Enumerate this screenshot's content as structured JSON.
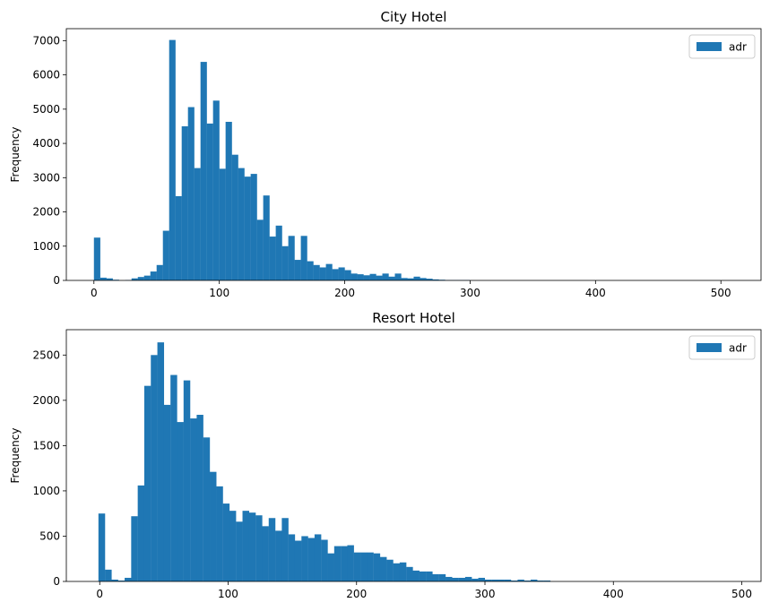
{
  "chart_data": [
    {
      "type": "bar",
      "subtype": "histogram",
      "title": "City Hotel",
      "xlabel": "",
      "ylabel": "Frequency",
      "xlim": [
        -22,
        532
      ],
      "ylim": [
        0,
        7350
      ],
      "xticks": [
        0,
        100,
        200,
        300,
        400,
        500
      ],
      "yticks": [
        0,
        1000,
        2000,
        3000,
        4000,
        5000,
        6000,
        7000
      ],
      "legend": {
        "position": "top-right",
        "entries": [
          "adr"
        ]
      },
      "color": "#1f77b4",
      "grid": false,
      "bin_edges_start": 0,
      "bin_width": 5,
      "series": [
        {
          "name": "adr",
          "values": [
            1250,
            80,
            60,
            20,
            0,
            10,
            60,
            100,
            140,
            260,
            450,
            1450,
            7020,
            2460,
            4500,
            5060,
            3280,
            6380,
            4580,
            5250,
            3260,
            4630,
            3670,
            3280,
            3030,
            3110,
            1770,
            2480,
            1280,
            1600,
            1000,
            1300,
            600,
            1300,
            560,
            450,
            380,
            480,
            330,
            380,
            300,
            200,
            180,
            150,
            190,
            140,
            200,
            110,
            200,
            70,
            60,
            110,
            70,
            50,
            30,
            20,
            10,
            10,
            10,
            10,
            0,
            0,
            0,
            0,
            0,
            0,
            0,
            0,
            0,
            0,
            0,
            0,
            0,
            0,
            0,
            0,
            0,
            0,
            0,
            0,
            0,
            0,
            0,
            0,
            0,
            0,
            0,
            0,
            0,
            0,
            0,
            0,
            0,
            0,
            0,
            0,
            0,
            0,
            0,
            0,
            0,
            0
          ]
        }
      ]
    },
    {
      "type": "bar",
      "subtype": "histogram",
      "title": "Resort Hotel",
      "xlabel": "",
      "ylabel": "Frequency",
      "xlim": [
        -26,
        515
      ],
      "ylim": [
        0,
        2780
      ],
      "xticks": [
        0,
        100,
        200,
        300,
        400,
        500
      ],
      "yticks": [
        0,
        500,
        1000,
        1500,
        2000,
        2500
      ],
      "legend": {
        "position": "top-right",
        "entries": [
          "adr"
        ]
      },
      "color": "#1f77b4",
      "grid": false,
      "bin_edges_start": -1,
      "bin_width": 5.1,
      "series": [
        {
          "name": "adr",
          "values": [
            750,
            130,
            20,
            10,
            40,
            720,
            1060,
            2160,
            2500,
            2640,
            1950,
            2280,
            1760,
            2220,
            1800,
            1840,
            1590,
            1210,
            1050,
            860,
            780,
            660,
            780,
            760,
            730,
            610,
            700,
            560,
            700,
            520,
            450,
            500,
            480,
            520,
            460,
            310,
            390,
            390,
            400,
            320,
            320,
            320,
            310,
            270,
            240,
            200,
            210,
            160,
            120,
            110,
            110,
            80,
            80,
            50,
            40,
            40,
            50,
            30,
            40,
            20,
            20,
            20,
            20,
            10,
            20,
            10,
            20,
            10,
            10,
            0,
            0,
            0,
            0,
            0,
            0,
            0,
            0,
            0,
            0,
            0,
            0,
            0,
            0,
            0,
            0,
            0,
            0,
            0,
            0,
            0,
            0,
            0,
            0,
            0,
            0,
            0,
            0,
            0,
            0,
            0
          ]
        }
      ]
    }
  ]
}
